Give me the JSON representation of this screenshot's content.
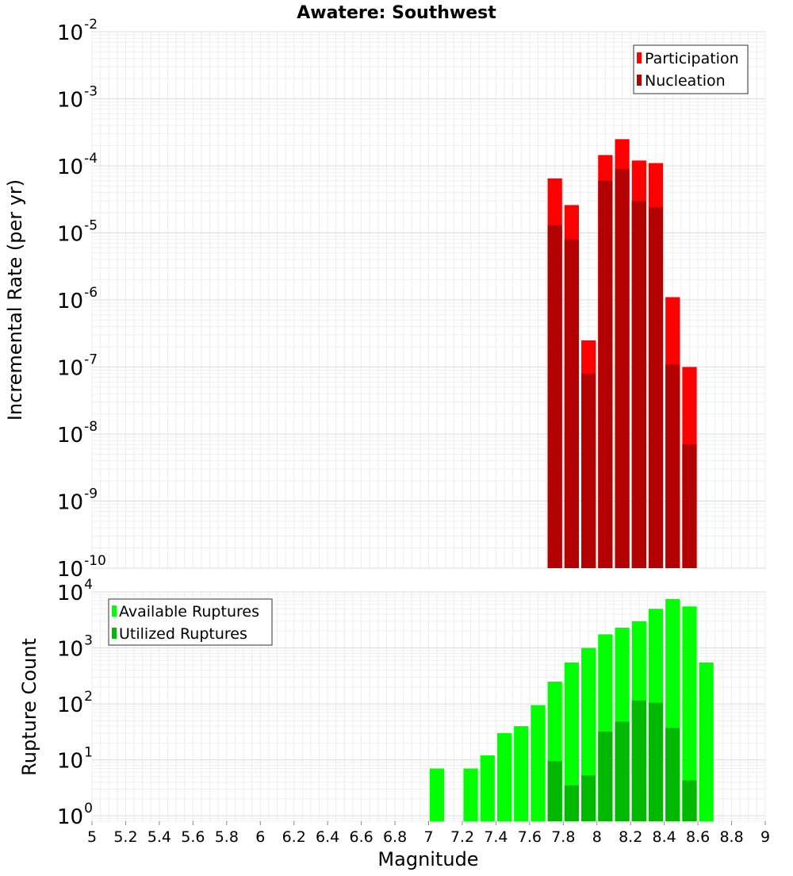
{
  "chart_data": [
    {
      "type": "bar",
      "title": "Awatere: Southwest",
      "xlabel": "",
      "ylabel": "Incremental Rate (per yr)",
      "y_scale": "log",
      "ylim": [
        1e-10,
        0.01
      ],
      "xlim": [
        5,
        9
      ],
      "bin_width": 0.1,
      "grid": true,
      "legend_placement": "top-right",
      "bars_overlaid": true,
      "series": [
        {
          "name": "Participation",
          "color": "#ff0000",
          "x": [
            7.75,
            7.85,
            7.95,
            8.05,
            8.15,
            8.25,
            8.35,
            8.45,
            8.55
          ],
          "values": [
            6.5e-05,
            2.6e-05,
            2.5e-07,
            0.000145,
            0.00025,
            0.00012,
            0.00011,
            1.1e-06,
            1e-07
          ]
        },
        {
          "name": "Nucleation",
          "color": "#b30000",
          "x": [
            7.75,
            7.85,
            7.95,
            8.05,
            8.15,
            8.25,
            8.35,
            8.45,
            8.55
          ],
          "values": [
            1.3e-05,
            8e-06,
            8e-08,
            6e-05,
            9e-05,
            3e-05,
            2.4e-05,
            1.1e-07,
            7e-09
          ]
        }
      ],
      "y_ticks": [
        {
          "base": "10",
          "exp": "-2"
        },
        {
          "base": "10",
          "exp": "-3"
        },
        {
          "base": "10",
          "exp": "-4"
        },
        {
          "base": "10",
          "exp": "-5"
        },
        {
          "base": "10",
          "exp": "-6"
        },
        {
          "base": "10",
          "exp": "-7"
        },
        {
          "base": "10",
          "exp": "-8"
        },
        {
          "base": "10",
          "exp": "-9"
        },
        {
          "base": "10",
          "exp": "-10"
        }
      ]
    },
    {
      "type": "bar",
      "title": "",
      "xlabel": "Magnitude",
      "ylabel": "Rupture Count",
      "y_scale": "log",
      "ylim": [
        0.8,
        10000
      ],
      "xlim": [
        5,
        9
      ],
      "bin_width": 0.1,
      "grid": true,
      "legend_placement": "top-left",
      "bars_overlaid": true,
      "series": [
        {
          "name": "Available Ruptures",
          "color": "#00ff00",
          "x": [
            7.05,
            7.25,
            7.35,
            7.45,
            7.55,
            7.65,
            7.75,
            7.85,
            7.95,
            8.05,
            8.15,
            8.25,
            8.35,
            8.45,
            8.55,
            8.65
          ],
          "values": [
            7,
            7,
            12,
            30,
            40,
            95,
            250,
            550,
            1000,
            1750,
            2300,
            3000,
            5000,
            7500,
            5500,
            550
          ]
        },
        {
          "name": "Utilized Ruptures",
          "color": "#00b800",
          "x": [
            7.75,
            7.85,
            7.95,
            8.05,
            8.15,
            8.25,
            8.35,
            8.45,
            8.55
          ],
          "values": [
            9.5,
            3.5,
            5.3,
            32,
            48,
            115,
            105,
            37,
            4.3
          ]
        }
      ],
      "y_ticks": [
        {
          "base": "10",
          "exp": "4"
        },
        {
          "base": "10",
          "exp": "3"
        },
        {
          "base": "10",
          "exp": "2"
        },
        {
          "base": "10",
          "exp": "1"
        },
        {
          "base": "10",
          "exp": "0"
        }
      ],
      "x_ticks": [
        "5",
        "5.2",
        "5.4",
        "5.6",
        "5.8",
        "6",
        "6.2",
        "6.4",
        "6.6",
        "6.8",
        "7",
        "7.2",
        "7.4",
        "7.6",
        "7.8",
        "8",
        "8.2",
        "8.4",
        "8.6",
        "8.8",
        "9"
      ]
    }
  ]
}
